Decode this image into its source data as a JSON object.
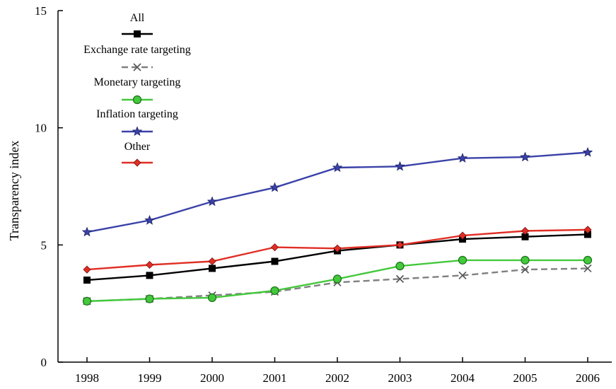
{
  "chart_data": {
    "type": "line",
    "title": "",
    "xlabel": "",
    "ylabel": "Transparency index",
    "categories": [
      "1998",
      "1999",
      "2000",
      "2001",
      "2002",
      "2003",
      "2004",
      "2005",
      "2006"
    ],
    "ylim": [
      0,
      15
    ],
    "yticks": [
      "0",
      "5",
      "10",
      "15"
    ],
    "grid": false,
    "legend_position": "top-left",
    "series": [
      {
        "name": "All",
        "color": "#000000",
        "marker": "square",
        "dash": "solid",
        "values": [
          3.5,
          3.7,
          4.0,
          4.3,
          4.75,
          5.0,
          5.25,
          5.35,
          5.45
        ]
      },
      {
        "name": "Exchange rate targeting",
        "color": "#808080",
        "marker": "x",
        "dash": "dashed",
        "values": [
          2.6,
          2.7,
          2.85,
          3.0,
          3.4,
          3.55,
          3.7,
          3.95,
          4.0
        ]
      },
      {
        "name": "Monetary targeting",
        "color": "#44c83c",
        "marker": "circle",
        "dash": "solid",
        "values": [
          2.6,
          2.7,
          2.75,
          3.05,
          3.55,
          4.1,
          4.35,
          4.35,
          4.35
        ]
      },
      {
        "name": "Inflation targeting",
        "color": "#3a42a8",
        "marker": "star",
        "dash": "solid",
        "values": [
          5.55,
          6.05,
          6.85,
          7.45,
          8.3,
          8.35,
          8.7,
          8.75,
          8.95
        ]
      },
      {
        "name": "Other",
        "color": "#e02e24",
        "marker": "diamond",
        "dash": "solid",
        "values": [
          3.95,
          4.15,
          4.3,
          4.9,
          4.85,
          5.0,
          5.4,
          5.6,
          5.65
        ]
      }
    ]
  }
}
